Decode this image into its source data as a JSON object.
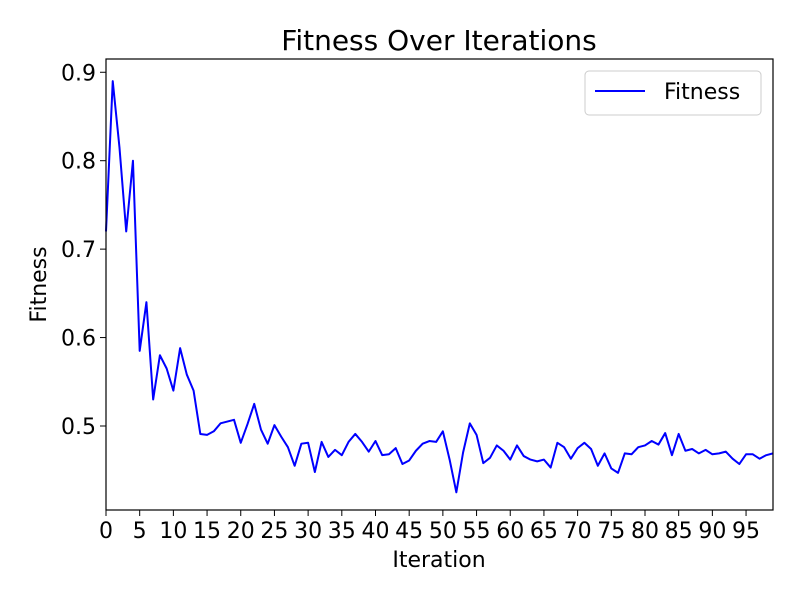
{
  "chart_data": {
    "type": "line",
    "title": "Fitness Over Iterations",
    "xlabel": "Iteration",
    "ylabel": "Fitness",
    "xlim": [
      0,
      99
    ],
    "ylim": [
      0.405,
      0.915
    ],
    "xticks": [
      0,
      5,
      10,
      15,
      20,
      25,
      30,
      35,
      40,
      45,
      50,
      55,
      60,
      65,
      70,
      75,
      80,
      85,
      90,
      95
    ],
    "yticks": [
      0.5,
      0.6,
      0.7,
      0.8,
      0.9
    ],
    "ytick_labels": [
      "0.5",
      "0.6",
      "0.7",
      "0.8",
      "0.9"
    ],
    "grid": false,
    "legend_position": "top-right",
    "series": [
      {
        "name": "Fitness",
        "color": "#0000ff",
        "x": [
          0,
          1,
          2,
          3,
          4,
          5,
          6,
          7,
          8,
          9,
          10,
          11,
          12,
          13,
          14,
          15,
          16,
          17,
          18,
          19,
          20,
          21,
          22,
          23,
          24,
          25,
          26,
          27,
          28,
          29,
          30,
          31,
          32,
          33,
          34,
          35,
          36,
          37,
          38,
          39,
          40,
          41,
          42,
          43,
          44,
          45,
          46,
          47,
          48,
          49,
          50,
          51,
          52,
          53,
          54,
          55,
          56,
          57,
          58,
          59,
          60,
          61,
          62,
          63,
          64,
          65,
          66,
          67,
          68,
          69,
          70,
          71,
          72,
          73,
          74,
          75,
          76,
          77,
          78,
          79,
          80,
          81,
          82,
          83,
          84,
          85,
          86,
          87,
          88,
          89,
          90,
          91,
          92,
          93,
          94,
          95,
          96,
          97,
          98,
          99
        ],
        "values": [
          0.72,
          0.89,
          0.815,
          0.72,
          0.8,
          0.585,
          0.64,
          0.53,
          0.58,
          0.565,
          0.54,
          0.588,
          0.558,
          0.54,
          0.491,
          0.49,
          0.494,
          0.503,
          0.505,
          0.507,
          0.481,
          0.502,
          0.525,
          0.496,
          0.48,
          0.501,
          0.488,
          0.476,
          0.455,
          0.48,
          0.481,
          0.448,
          0.482,
          0.465,
          0.473,
          0.467,
          0.482,
          0.491,
          0.482,
          0.471,
          0.483,
          0.467,
          0.468,
          0.475,
          0.457,
          0.461,
          0.472,
          0.48,
          0.483,
          0.482,
          0.494,
          0.462,
          0.425,
          0.47,
          0.503,
          0.49,
          0.458,
          0.464,
          0.478,
          0.472,
          0.462,
          0.478,
          0.466,
          0.462,
          0.46,
          0.462,
          0.453,
          0.481,
          0.476,
          0.463,
          0.475,
          0.481,
          0.474,
          0.455,
          0.469,
          0.452,
          0.447,
          0.469,
          0.468,
          0.476,
          0.478,
          0.483,
          0.479,
          0.492,
          0.467,
          0.491,
          0.472,
          0.474,
          0.469,
          0.473,
          0.468,
          0.469,
          0.471,
          0.463,
          0.457,
          0.468,
          0.468,
          0.463,
          0.467,
          0.469
        ]
      }
    ]
  }
}
